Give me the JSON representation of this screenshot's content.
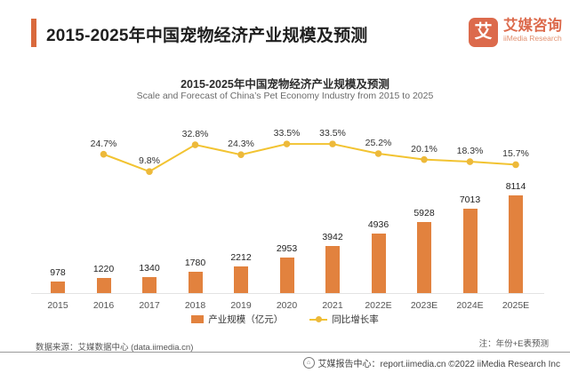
{
  "header": {
    "title": "2015-2025年中国宠物经济产业规模及预测",
    "accent_color": "#d9693c"
  },
  "logo": {
    "glyph": "艾",
    "cn": "艾媒咨询",
    "en": "iiMedia Research",
    "color": "#dc6a4c"
  },
  "chart_data": {
    "type": "bar",
    "title": "2015-2025年中国宠物经济产业规模及预测",
    "subtitle": "Scale and Forecast of China’s Pet Economy Industry from 2015 to 2025",
    "categories": [
      "2015",
      "2016",
      "2017",
      "2018",
      "2019",
      "2020",
      "2021",
      "2022E",
      "2023E",
      "2024E",
      "2025E"
    ],
    "series": [
      {
        "name": "产业规模（亿元）",
        "chart": "bar",
        "color": "#e2823e",
        "values": [
          978,
          1220,
          1340,
          1780,
          2212,
          2953,
          3942,
          4936,
          5928,
          7013,
          8114
        ]
      },
      {
        "name": "同比增长率",
        "chart": "line",
        "color": "#f2c331",
        "dot_color": "#edb93a",
        "unit": "%",
        "x_start_index": 1,
        "values": [
          24.7,
          9.8,
          32.8,
          24.3,
          33.5,
          33.5,
          25.2,
          20.1,
          18.3,
          15.7
        ]
      }
    ],
    "bar_ylim": [
      0,
      8500
    ],
    "grid": false,
    "legend_position": "bottom",
    "data_labels": true
  },
  "footnotes": {
    "source": "数据来源：艾媒数据中心 (data.iimedia.cn)",
    "note": "注：年份+E表预测"
  },
  "footer": {
    "icon": "home-circle-icon",
    "icon_glyph": "⌂",
    "text": "艾媒报告中心：report.iimedia.cn ©2022 iiMedia Research Inc"
  }
}
